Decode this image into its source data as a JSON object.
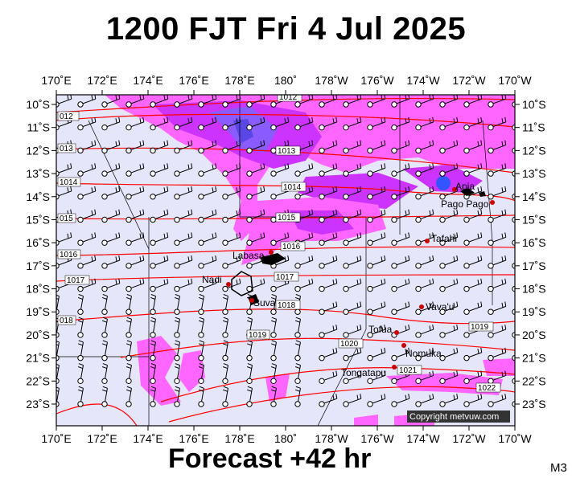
{
  "header": {
    "title": "1200 FJT Fri 4 Jul 2025"
  },
  "footer": {
    "forecast": "Forecast +42 hr",
    "code": "M3"
  },
  "map": {
    "lon_labels": [
      "170˚E",
      "172˚E",
      "174˚E",
      "176˚E",
      "178˚E",
      "180˚",
      "178˚W",
      "176˚W",
      "174˚W",
      "172˚W",
      "170˚W"
    ],
    "lat_labels": [
      "10˚S",
      "11˚S",
      "12˚S",
      "13˚S",
      "14˚S",
      "15˚S",
      "16˚S",
      "17˚S",
      "18˚S",
      "19˚S",
      "20˚S",
      "21˚S",
      "22˚S",
      "23˚S"
    ],
    "isobars": [
      "1012",
      "1013",
      "1014",
      "1015",
      "1016",
      "1017",
      "1018",
      "1019",
      "1020",
      "1021",
      "1022"
    ],
    "places": [
      "Apia",
      "Pago Pago",
      "Tafahi",
      "Labasa",
      "Nadi",
      "Suva",
      "Vava'u",
      "Tofua",
      "Nomuka",
      "Tongatapu"
    ],
    "copyright": "Copyright metvuw.com",
    "colors": {
      "background": "#e6e6fa",
      "rain_light": "#ff00ff",
      "rain_medium": "#cc33ff",
      "rain_heavy": "#6633ff",
      "isobar": "#ff0000",
      "place_dot": "#cc0000"
    }
  }
}
